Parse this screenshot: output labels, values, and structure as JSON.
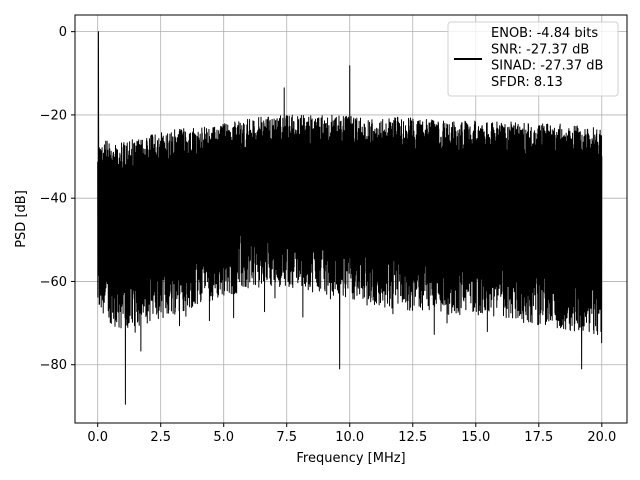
{
  "chart_data": {
    "type": "line",
    "title": "",
    "xlabel": "Frequency [MHz]",
    "ylabel": "PSD [dB]",
    "xlim": [
      -0.9,
      21.0
    ],
    "ylim": [
      -94,
      4
    ],
    "x_ticks": [
      0.0,
      2.5,
      5.0,
      7.5,
      10.0,
      12.5,
      15.0,
      17.5,
      20.0
    ],
    "x_tick_labels": [
      "0.0",
      "2.5",
      "5.0",
      "7.5",
      "10.0",
      "12.5",
      "15.0",
      "17.5",
      "20.0"
    ],
    "y_ticks": [
      0,
      -20,
      -40,
      -60,
      -80
    ],
    "y_tick_labels": [
      "0",
      "−20",
      "−40",
      "−60",
      "−80"
    ],
    "grid": true,
    "legend_position": "top-right",
    "color": "#000000",
    "series": [
      {
        "name": "ENOB: -4.84 bits\nSNR: -27.37 dB\nSINAD: -27.37 dB\nSFDR: 8.13",
        "legend_lines": [
          "ENOB: -4.84 bits",
          "SNR: -27.37 dB",
          "SINAD: -27.37 dB",
          "SFDR: 8.13"
        ],
        "x_range": [
          0,
          20
        ],
        "upper_envelope": [
          {
            "x": 0.0,
            "y": -26
          },
          {
            "x": 1.0,
            "y": -26.5
          },
          {
            "x": 2.0,
            "y": -25
          },
          {
            "x": 3.0,
            "y": -23.5
          },
          {
            "x": 4.0,
            "y": -23
          },
          {
            "x": 5.0,
            "y": -22
          },
          {
            "x": 6.0,
            "y": -21
          },
          {
            "x": 7.0,
            "y": -20
          },
          {
            "x": 8.0,
            "y": -20
          },
          {
            "x": 9.0,
            "y": -20
          },
          {
            "x": 10.0,
            "y": -20
          },
          {
            "x": 11.0,
            "y": -20.5
          },
          {
            "x": 12.0,
            "y": -20.5
          },
          {
            "x": 13.0,
            "y": -21
          },
          {
            "x": 14.0,
            "y": -21
          },
          {
            "x": 15.0,
            "y": -21.5
          },
          {
            "x": 16.0,
            "y": -21.5
          },
          {
            "x": 17.0,
            "y": -22
          },
          {
            "x": 18.0,
            "y": -22
          },
          {
            "x": 19.0,
            "y": -22.5
          },
          {
            "x": 20.0,
            "y": -23
          }
        ],
        "lower_envelope": [
          {
            "x": 0.0,
            "y": -68
          },
          {
            "x": 1.0,
            "y": -72
          },
          {
            "x": 2.0,
            "y": -70
          },
          {
            "x": 3.0,
            "y": -68
          },
          {
            "x": 4.0,
            "y": -66
          },
          {
            "x": 5.0,
            "y": -64
          },
          {
            "x": 6.0,
            "y": -62
          },
          {
            "x": 7.0,
            "y": -61
          },
          {
            "x": 8.0,
            "y": -62
          },
          {
            "x": 9.0,
            "y": -63
          },
          {
            "x": 10.0,
            "y": -64
          },
          {
            "x": 11.0,
            "y": -66
          },
          {
            "x": 12.0,
            "y": -67
          },
          {
            "x": 13.0,
            "y": -67
          },
          {
            "x": 14.0,
            "y": -68
          },
          {
            "x": 15.0,
            "y": -68
          },
          {
            "x": 16.0,
            "y": -69
          },
          {
            "x": 17.0,
            "y": -70
          },
          {
            "x": 18.0,
            "y": -71
          },
          {
            "x": 19.0,
            "y": -72
          },
          {
            "x": 20.0,
            "y": -73
          }
        ],
        "peaks": [
          {
            "x": 0.03,
            "y": 0
          },
          {
            "x": 10.0,
            "y": -8.2
          },
          {
            "x": 7.4,
            "y": -13.5
          },
          {
            "x": 1.1,
            "y": -89.5
          },
          {
            "x": 9.6,
            "y": -81
          },
          {
            "x": 19.2,
            "y": -81
          }
        ]
      }
    ]
  }
}
